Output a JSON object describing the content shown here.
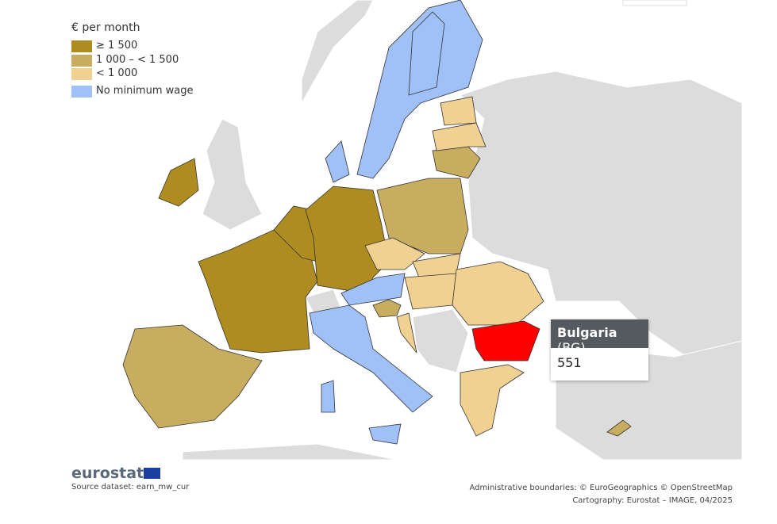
{
  "legend": {
    "title": "€ per month",
    "items": [
      {
        "label": "≥ 1 500",
        "color": "#ae8c1f"
      },
      {
        "label": "1 000 – < 1 500",
        "color": "#c8ad61"
      },
      {
        "label": "< 1 000",
        "color": "#f0d192"
      },
      {
        "label": "No minimum wage",
        "color": "#9fc1f7"
      }
    ]
  },
  "tooltip": {
    "country": "Bulgaria",
    "code": "(BG)",
    "value": "551",
    "color": "#ff0000"
  },
  "footer": {
    "logo": "eurostat",
    "source": "Source dataset: earn_mw_cur",
    "boundaries": "Administrative boundaries: © EuroGeographics © OpenStreetMap",
    "cartography": "Cartography: Eurostat – IMAGE, 04/2025"
  }
}
